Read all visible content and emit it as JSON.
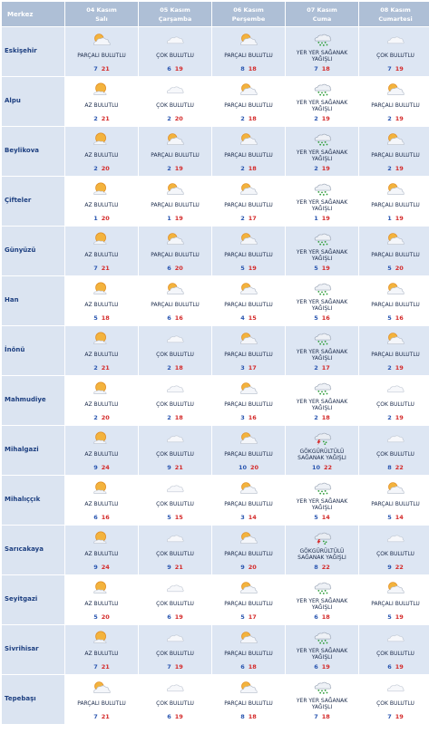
{
  "header": {
    "merkez": "Merkez",
    "days": [
      {
        "date": "04 Kasım",
        "day": "Salı"
      },
      {
        "date": "05 Kasım",
        "day": "Çarşamba"
      },
      {
        "date": "06 Kasım",
        "day": "Perşembe"
      },
      {
        "date": "07 Kasım",
        "day": "Cuma"
      },
      {
        "date": "08 Kasım",
        "day": "Cumartesi"
      }
    ]
  },
  "rows": [
    {
      "city": "Eskişehir",
      "cells": [
        {
          "icon": "partly-cloudy-icon",
          "desc": "PARÇALI BULUTLU",
          "min": "7",
          "max": "21"
        },
        {
          "icon": "cloudy-icon",
          "desc": "ÇOK BULUTLU",
          "min": "6",
          "max": "19"
        },
        {
          "icon": "partly-cloudy-icon",
          "desc": "PARÇALI BULUTLU",
          "min": "8",
          "max": "18"
        },
        {
          "icon": "showers-icon",
          "desc": "YER YER SAĞANAK YAĞIŞLI",
          "min": "7",
          "max": "18"
        },
        {
          "icon": "cloudy-icon",
          "desc": "ÇOK BULUTLU",
          "min": "7",
          "max": "19"
        }
      ]
    },
    {
      "city": "Alpu",
      "cells": [
        {
          "icon": "mostly-sunny-icon",
          "desc": "AZ BULUTLU",
          "min": "2",
          "max": "21"
        },
        {
          "icon": "cloudy-icon",
          "desc": "ÇOK BULUTLU",
          "min": "2",
          "max": "20"
        },
        {
          "icon": "partly-cloudy-icon",
          "desc": "PARÇALI BULUTLU",
          "min": "2",
          "max": "18"
        },
        {
          "icon": "showers-icon",
          "desc": "YER YER SAĞANAK YAĞIŞLI",
          "min": "2",
          "max": "19"
        },
        {
          "icon": "partly-cloudy-icon",
          "desc": "PARÇALI BULUTLU",
          "min": "2",
          "max": "19"
        }
      ]
    },
    {
      "city": "Beylikova",
      "cells": [
        {
          "icon": "mostly-sunny-icon",
          "desc": "AZ BULUTLU",
          "min": "2",
          "max": "20"
        },
        {
          "icon": "partly-cloudy-icon",
          "desc": "PARÇALI BULUTLU",
          "min": "2",
          "max": "19"
        },
        {
          "icon": "partly-cloudy-icon",
          "desc": "PARÇALI BULUTLU",
          "min": "2",
          "max": "18"
        },
        {
          "icon": "showers-icon",
          "desc": "YER YER SAĞANAK YAĞIŞLI",
          "min": "2",
          "max": "19"
        },
        {
          "icon": "partly-cloudy-icon",
          "desc": "PARÇALI BULUTLU",
          "min": "2",
          "max": "19"
        }
      ]
    },
    {
      "city": "Çifteler",
      "cells": [
        {
          "icon": "mostly-sunny-icon",
          "desc": "AZ BULUTLU",
          "min": "1",
          "max": "20"
        },
        {
          "icon": "partly-cloudy-icon",
          "desc": "PARÇALI BULUTLU",
          "min": "1",
          "max": "19"
        },
        {
          "icon": "partly-cloudy-icon",
          "desc": "PARÇALI BULUTLU",
          "min": "2",
          "max": "17"
        },
        {
          "icon": "showers-icon",
          "desc": "YER YER SAĞANAK YAĞIŞLI",
          "min": "1",
          "max": "19"
        },
        {
          "icon": "partly-cloudy-icon",
          "desc": "PARÇALI BULUTLU",
          "min": "1",
          "max": "19"
        }
      ]
    },
    {
      "city": "Günyüzü",
      "cells": [
        {
          "icon": "mostly-sunny-icon",
          "desc": "AZ BULUTLU",
          "min": "7",
          "max": "21"
        },
        {
          "icon": "partly-cloudy-icon",
          "desc": "PARÇALI BULUTLU",
          "min": "6",
          "max": "20"
        },
        {
          "icon": "partly-cloudy-icon",
          "desc": "PARÇALI BULUTLU",
          "min": "5",
          "max": "19"
        },
        {
          "icon": "showers-icon",
          "desc": "YER YER SAĞANAK YAĞIŞLI",
          "min": "5",
          "max": "19"
        },
        {
          "icon": "partly-cloudy-icon",
          "desc": "PARÇALI BULUTLU",
          "min": "5",
          "max": "20"
        }
      ]
    },
    {
      "city": "Han",
      "cells": [
        {
          "icon": "mostly-sunny-icon",
          "desc": "AZ BULUTLU",
          "min": "5",
          "max": "18"
        },
        {
          "icon": "partly-cloudy-icon",
          "desc": "PARÇALI BULUTLU",
          "min": "6",
          "max": "16"
        },
        {
          "icon": "partly-cloudy-icon",
          "desc": "PARÇALI BULUTLU",
          "min": "4",
          "max": "15"
        },
        {
          "icon": "showers-icon",
          "desc": "YER YER SAĞANAK YAĞIŞLI",
          "min": "5",
          "max": "16"
        },
        {
          "icon": "partly-cloudy-icon",
          "desc": "PARÇALI BULUTLU",
          "min": "5",
          "max": "16"
        }
      ]
    },
    {
      "city": "İnönü",
      "cells": [
        {
          "icon": "mostly-sunny-icon",
          "desc": "AZ BULUTLU",
          "min": "2",
          "max": "21"
        },
        {
          "icon": "cloudy-icon",
          "desc": "ÇOK BULUTLU",
          "min": "2",
          "max": "18"
        },
        {
          "icon": "partly-cloudy-icon",
          "desc": "PARÇALI BULUTLU",
          "min": "3",
          "max": "17"
        },
        {
          "icon": "showers-icon",
          "desc": "YER YER SAĞANAK YAĞIŞLI",
          "min": "2",
          "max": "17"
        },
        {
          "icon": "partly-cloudy-icon",
          "desc": "PARÇALI BULUTLU",
          "min": "2",
          "max": "19"
        }
      ]
    },
    {
      "city": "Mahmudiye",
      "cells": [
        {
          "icon": "mostly-sunny-icon",
          "desc": "AZ BULUTLU",
          "min": "2",
          "max": "20"
        },
        {
          "icon": "cloudy-icon",
          "desc": "ÇOK BULUTLU",
          "min": "2",
          "max": "18"
        },
        {
          "icon": "partly-cloudy-icon",
          "desc": "PARÇALI BULUTLU",
          "min": "3",
          "max": "16"
        },
        {
          "icon": "showers-icon",
          "desc": "YER YER SAĞANAK YAĞIŞLI",
          "min": "2",
          "max": "18"
        },
        {
          "icon": "cloudy-icon",
          "desc": "ÇOK BULUTLU",
          "min": "2",
          "max": "19"
        }
      ]
    },
    {
      "city": "Mihalgazi",
      "cells": [
        {
          "icon": "mostly-sunny-icon",
          "desc": "AZ BULUTLU",
          "min": "9",
          "max": "24"
        },
        {
          "icon": "cloudy-icon",
          "desc": "ÇOK BULUTLU",
          "min": "9",
          "max": "21"
        },
        {
          "icon": "partly-cloudy-icon",
          "desc": "PARÇALI BULUTLU",
          "min": "10",
          "max": "20"
        },
        {
          "icon": "thunderstorm-icon",
          "desc": "GÖKGÜRÜLTÜLÜ SAĞANAK YAĞIŞLI",
          "min": "10",
          "max": "22"
        },
        {
          "icon": "cloudy-icon",
          "desc": "ÇOK BULUTLU",
          "min": "8",
          "max": "22"
        }
      ]
    },
    {
      "city": "Mihalıççık",
      "cells": [
        {
          "icon": "mostly-sunny-icon",
          "desc": "AZ BULUTLU",
          "min": "6",
          "max": "16"
        },
        {
          "icon": "cloudy-icon",
          "desc": "ÇOK BULUTLU",
          "min": "5",
          "max": "15"
        },
        {
          "icon": "partly-cloudy-icon",
          "desc": "PARÇALI BULUTLU",
          "min": "3",
          "max": "14"
        },
        {
          "icon": "showers-icon",
          "desc": "YER YER SAĞANAK YAĞIŞLI",
          "min": "5",
          "max": "14"
        },
        {
          "icon": "partly-cloudy-icon",
          "desc": "PARÇALI BULUTLU",
          "min": "5",
          "max": "14"
        }
      ]
    },
    {
      "city": "Sarıcakaya",
      "cells": [
        {
          "icon": "mostly-sunny-icon",
          "desc": "AZ BULUTLU",
          "min": "9",
          "max": "24"
        },
        {
          "icon": "cloudy-icon",
          "desc": "ÇOK BULUTLU",
          "min": "9",
          "max": "21"
        },
        {
          "icon": "partly-cloudy-icon",
          "desc": "PARÇALI BULUTLU",
          "min": "9",
          "max": "20"
        },
        {
          "icon": "thunderstorm-icon",
          "desc": "GÖKGÜRÜLTÜLÜ SAĞANAK YAĞIŞLI",
          "min": "8",
          "max": "22"
        },
        {
          "icon": "cloudy-icon",
          "desc": "ÇOK BULUTLU",
          "min": "9",
          "max": "22"
        }
      ]
    },
    {
      "city": "Seyitgazi",
      "cells": [
        {
          "icon": "mostly-sunny-icon",
          "desc": "AZ BULUTLU",
          "min": "5",
          "max": "20"
        },
        {
          "icon": "cloudy-icon",
          "desc": "ÇOK BULUTLU",
          "min": "6",
          "max": "19"
        },
        {
          "icon": "partly-cloudy-icon",
          "desc": "PARÇALI BULUTLU",
          "min": "5",
          "max": "17"
        },
        {
          "icon": "showers-icon",
          "desc": "YER YER SAĞANAK YAĞIŞLI",
          "min": "6",
          "max": "18"
        },
        {
          "icon": "partly-cloudy-icon",
          "desc": "PARÇALI BULUTLU",
          "min": "5",
          "max": "19"
        }
      ]
    },
    {
      "city": "Sivrihisar",
      "cells": [
        {
          "icon": "mostly-sunny-icon",
          "desc": "AZ BULUTLU",
          "min": "7",
          "max": "21"
        },
        {
          "icon": "cloudy-icon",
          "desc": "ÇOK BULUTLU",
          "min": "7",
          "max": "19"
        },
        {
          "icon": "partly-cloudy-icon",
          "desc": "PARÇALI BULUTLU",
          "min": "6",
          "max": "18"
        },
        {
          "icon": "showers-icon",
          "desc": "YER YER SAĞANAK YAĞIŞLI",
          "min": "6",
          "max": "19"
        },
        {
          "icon": "cloudy-icon",
          "desc": "ÇOK BULUTLU",
          "min": "6",
          "max": "19"
        }
      ]
    },
    {
      "city": "Tepebaşı",
      "cells": [
        {
          "icon": "partly-cloudy-icon",
          "desc": "PARÇALI BULUTLU",
          "min": "7",
          "max": "21"
        },
        {
          "icon": "cloudy-icon",
          "desc": "ÇOK BULUTLU",
          "min": "6",
          "max": "19"
        },
        {
          "icon": "partly-cloudy-icon",
          "desc": "PARÇALI BULUTLU",
          "min": "8",
          "max": "18"
        },
        {
          "icon": "showers-icon",
          "desc": "YER YER SAĞANAK YAĞIŞLI",
          "min": "7",
          "max": "18"
        },
        {
          "icon": "cloudy-icon",
          "desc": "ÇOK BULUTLU",
          "min": "7",
          "max": "19"
        }
      ]
    }
  ],
  "colors": {
    "header_bg": "#aebfd6",
    "city_bg": "#dbe4f1",
    "alt_row_bg": "#dde6f3",
    "min_temp": "#2a56b0",
    "max_temp": "#d42a2a"
  }
}
